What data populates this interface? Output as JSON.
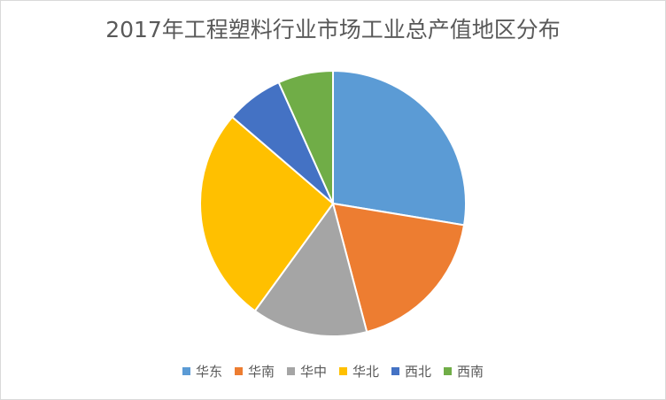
{
  "chart_data": {
    "type": "pie",
    "title": "2017年工程塑料行业市场工业总产值地区分布",
    "categories": [
      "华东",
      "华南",
      "华中",
      "华北",
      "西北",
      "西南"
    ],
    "values": [
      27.6,
      18.3,
      14.1,
      26.3,
      7.0,
      6.7
    ],
    "unit": "%",
    "colors": [
      "#5B9BD5",
      "#ED7D31",
      "#A5A5A5",
      "#FFC000",
      "#4472C4",
      "#70AD47"
    ],
    "legend": "bottom",
    "start_angle": "12 o'clock, clockwise"
  }
}
